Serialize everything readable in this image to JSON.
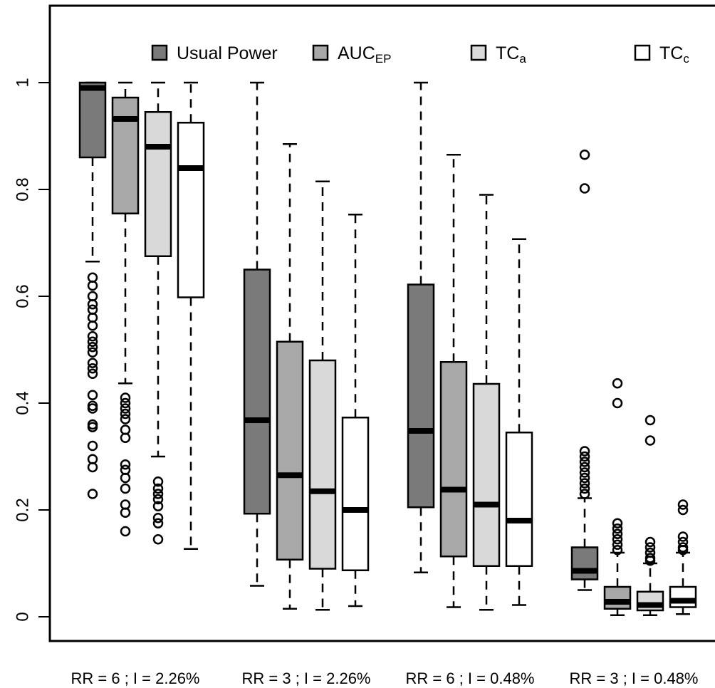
{
  "chart_data": {
    "type": "box",
    "title": "",
    "xlabel": "",
    "ylabel": "",
    "ylim": [
      -0.04,
      1.12
    ],
    "yticks": [
      0,
      0.2,
      0.4,
      0.6,
      0.8,
      1
    ],
    "ytick_labels": [
      "0",
      "0.2",
      "0.4",
      "0.6",
      "0.8",
      "1"
    ],
    "grid": false,
    "legend_position": "top",
    "categories": [
      "RR = 6 ; I = 2.26%",
      "RR = 3 ; I = 2.26%",
      "RR = 6 ; I = 0.48%",
      "RR = 3 ; I = 0.48%"
    ],
    "series": [
      {
        "name": "Usual Power",
        "sub": "",
        "color": "#7a7a7a",
        "boxes": [
          {
            "whisker_low": 0.665,
            "q1": 0.86,
            "median": 0.99,
            "q3": 1.0,
            "whisker_high": 1.0,
            "outliers": [
              0.635,
              0.62,
              0.6,
              0.585,
              0.575,
              0.56,
              0.545,
              0.525,
              0.515,
              0.505,
              0.495,
              0.475,
              0.465,
              0.455,
              0.415,
              0.395,
              0.39,
              0.36,
              0.355,
              0.32,
              0.295,
              0.28,
              0.23
            ]
          },
          {
            "whisker_low": 0.058,
            "q1": 0.193,
            "median": 0.368,
            "q3": 0.65,
            "whisker_high": 1.0,
            "outliers": []
          },
          {
            "whisker_low": 0.083,
            "q1": 0.205,
            "median": 0.348,
            "q3": 0.622,
            "whisker_high": 1.0,
            "outliers": []
          },
          {
            "whisker_low": 0.05,
            "q1": 0.07,
            "median": 0.086,
            "q3": 0.13,
            "whisker_high": 0.222,
            "outliers": [
              0.865,
              0.802,
              0.31,
              0.3,
              0.29,
              0.28,
              0.27,
              0.26,
              0.25,
              0.24,
              0.23
            ]
          }
        ]
      },
      {
        "name": "AUC",
        "sub": "EP",
        "color": "#a8a8a8",
        "boxes": [
          {
            "whisker_low": 0.437,
            "q1": 0.755,
            "median": 0.932,
            "q3": 0.972,
            "whisker_high": 1.0,
            "outliers": [
              0.41,
              0.4,
              0.39,
              0.38,
              0.37,
              0.35,
              0.335,
              0.285,
              0.275,
              0.26,
              0.24,
              0.21,
              0.195,
              0.16
            ]
          },
          {
            "whisker_low": 0.015,
            "q1": 0.107,
            "median": 0.265,
            "q3": 0.515,
            "whisker_high": 0.885,
            "outliers": []
          },
          {
            "whisker_low": 0.018,
            "q1": 0.113,
            "median": 0.238,
            "q3": 0.477,
            "whisker_high": 0.865,
            "outliers": []
          },
          {
            "whisker_low": 0.003,
            "q1": 0.015,
            "median": 0.028,
            "q3": 0.056,
            "whisker_high": 0.12,
            "outliers": [
              0.437,
              0.4,
              0.175,
              0.165,
              0.155,
              0.145,
              0.135,
              0.125
            ]
          }
        ]
      },
      {
        "name": "TC",
        "sub": "a",
        "color": "#d9d9d9",
        "boxes": [
          {
            "whisker_low": 0.3,
            "q1": 0.675,
            "median": 0.88,
            "q3": 0.945,
            "whisker_high": 1.0,
            "outliers": [
              0.253,
              0.24,
              0.23,
              0.22,
              0.207,
              0.185,
              0.175,
              0.145
            ]
          },
          {
            "whisker_low": 0.013,
            "q1": 0.09,
            "median": 0.235,
            "q3": 0.48,
            "whisker_high": 0.815,
            "outliers": []
          },
          {
            "whisker_low": 0.013,
            "q1": 0.095,
            "median": 0.21,
            "q3": 0.436,
            "whisker_high": 0.79,
            "outliers": []
          },
          {
            "whisker_low": 0.003,
            "q1": 0.012,
            "median": 0.022,
            "q3": 0.047,
            "whisker_high": 0.1,
            "outliers": [
              0.368,
              0.33,
              0.14,
              0.13,
              0.12,
              0.11,
              0.105
            ]
          }
        ]
      },
      {
        "name": "TC",
        "sub": "c",
        "color": "#ffffff",
        "boxes": [
          {
            "whisker_low": 0.127,
            "q1": 0.598,
            "median": 0.84,
            "q3": 0.925,
            "whisker_high": 1.0,
            "outliers": []
          },
          {
            "whisker_low": 0.02,
            "q1": 0.087,
            "median": 0.2,
            "q3": 0.373,
            "whisker_high": 0.753,
            "outliers": []
          },
          {
            "whisker_low": 0.022,
            "q1": 0.095,
            "median": 0.18,
            "q3": 0.345,
            "whisker_high": 0.707,
            "outliers": []
          },
          {
            "whisker_low": 0.005,
            "q1": 0.018,
            "median": 0.03,
            "q3": 0.056,
            "whisker_high": 0.12,
            "outliers": [
              0.21,
              0.2,
              0.15,
              0.14,
              0.13,
              0.125
            ]
          }
        ]
      }
    ]
  }
}
